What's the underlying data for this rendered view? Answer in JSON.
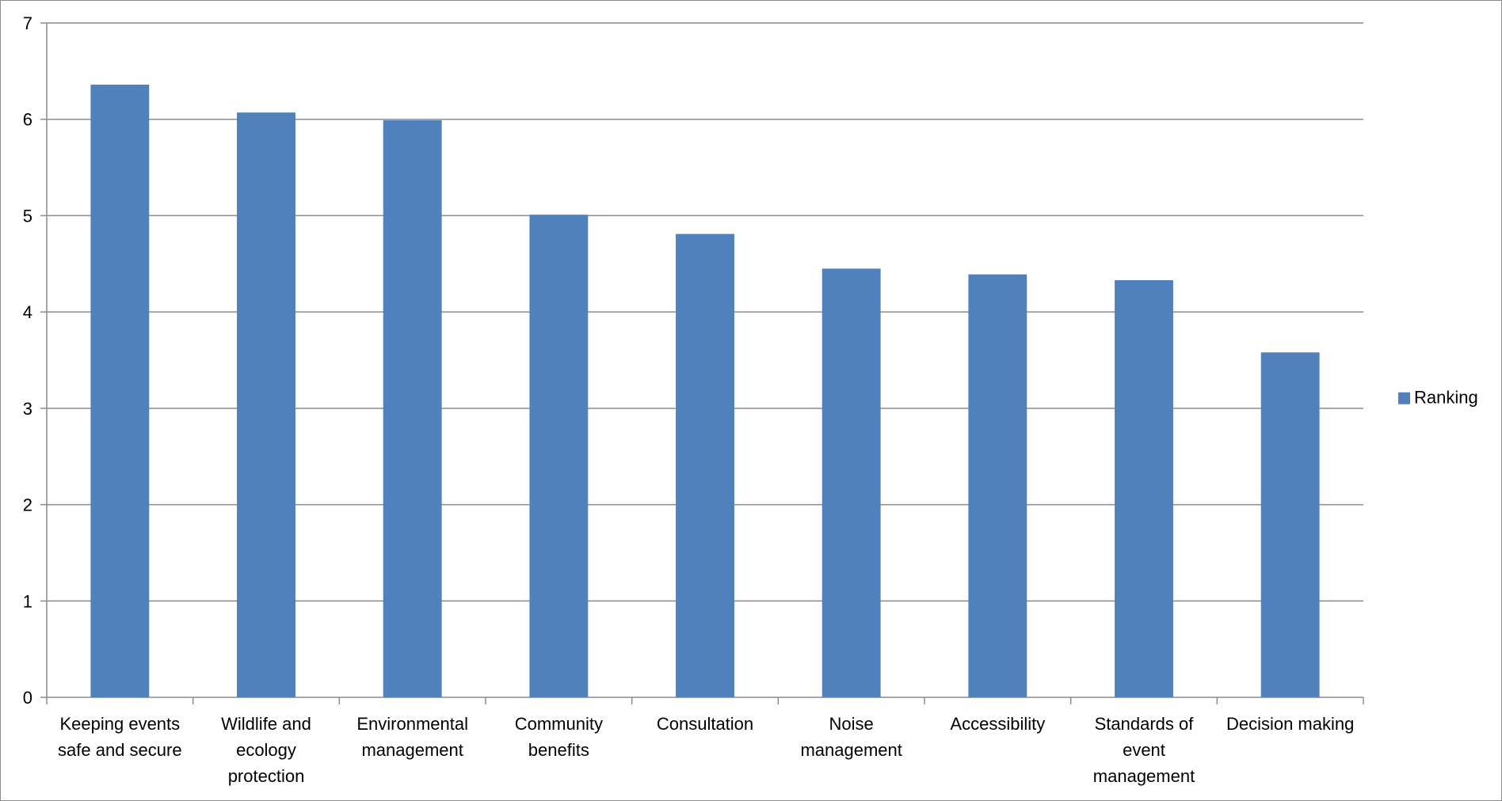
{
  "chart_data": {
    "type": "bar",
    "title": "",
    "xlabel": "",
    "ylabel": "",
    "ylim": [
      0,
      7
    ],
    "yticks": [
      0,
      1,
      2,
      3,
      4,
      5,
      6,
      7
    ],
    "grid": true,
    "legend_position": "right",
    "bar_color": "#4f81bd",
    "categories": [
      [
        "Keeping events",
        "safe and secure"
      ],
      [
        "Wildlife and",
        "ecology",
        "protection"
      ],
      [
        "Environmental",
        "management"
      ],
      [
        "Community",
        "benefits"
      ],
      [
        "Consultation"
      ],
      [
        "Noise",
        "management"
      ],
      [
        "Accessibility"
      ],
      [
        "Standards of",
        "event",
        "management"
      ],
      [
        "Decision making"
      ]
    ],
    "series": [
      {
        "name": "Ranking",
        "values": [
          6.36,
          6.07,
          5.99,
          5.01,
          4.81,
          4.45,
          4.39,
          4.33,
          3.58
        ]
      }
    ]
  }
}
